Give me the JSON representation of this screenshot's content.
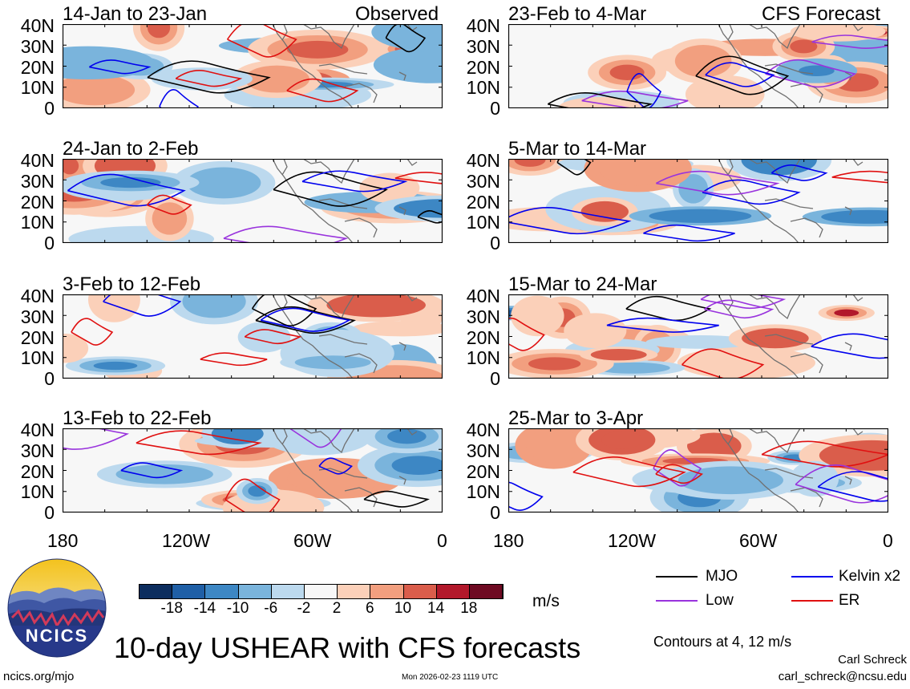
{
  "panels": [
    {
      "id": "obs1",
      "title": "14-Jan to 23-Jan",
      "tag": "Observed"
    },
    {
      "id": "obs2",
      "title": "24-Jan to 2-Feb",
      "tag": ""
    },
    {
      "id": "obs3",
      "title": "3-Feb to 12-Feb",
      "tag": ""
    },
    {
      "id": "obs4",
      "title": "13-Feb to 22-Feb",
      "tag": ""
    },
    {
      "id": "fc1",
      "title": "23-Feb to 4-Mar",
      "tag": "CFS Forecast"
    },
    {
      "id": "fc2",
      "title": "5-Mar to 14-Mar",
      "tag": ""
    },
    {
      "id": "fc3",
      "title": "15-Mar to 24-Mar",
      "tag": ""
    },
    {
      "id": "fc4",
      "title": "25-Mar to 3-Apr",
      "tag": ""
    }
  ],
  "latitude_labels": [
    "40N",
    "30N",
    "20N",
    "10N",
    "0"
  ],
  "longitude_labels": [
    "180",
    "120W",
    "60W",
    "0"
  ],
  "colorbar": {
    "labels": [
      "-18",
      "-14",
      "-10",
      "-6",
      "-2",
      "2",
      "6",
      "10",
      "14",
      "18"
    ],
    "colors": [
      "#0c2d5e",
      "#1f5fa6",
      "#3d87c4",
      "#7ab4dc",
      "#bcd9ee",
      "#f7f7f7",
      "#fbd0b9",
      "#f29f7f",
      "#da5d4b",
      "#b2182b",
      "#6e0a22"
    ],
    "unit": "m/s"
  },
  "legend": [
    {
      "label": "MJO",
      "color": "#000000"
    },
    {
      "label": "Kelvin x2",
      "color": "#0000ee"
    },
    {
      "label": "Low",
      "color": "#9933dd"
    },
    {
      "label": "ER",
      "color": "#e01010"
    }
  ],
  "contour_note": "Contours at 4, 12 m/s",
  "main_title": "10-day USHEAR with CFS forecasts",
  "logo_text": "NCICS",
  "author": "Carl Schreck",
  "email": "carl_schreck@ncsu.edu",
  "website": "ncics.org/mjo",
  "timestamp": "Mon 2026-02-23 1119 UTC"
}
